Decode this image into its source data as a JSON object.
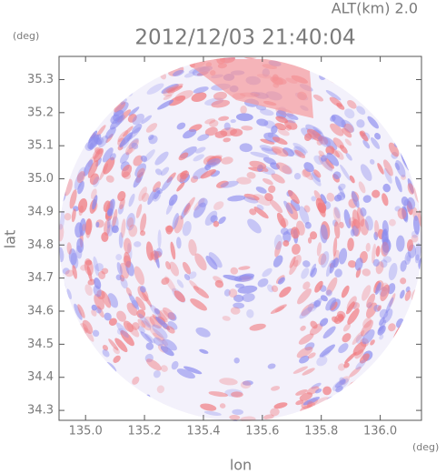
{
  "chart_data": {
    "type": "image",
    "title": "2012/12/03 21:40:04",
    "subtitle": "ALT(km) 2.0",
    "xlabel": "lon",
    "ylabel": "lat",
    "x_unit": "(deg)",
    "y_unit": "(deg)",
    "xlim": [
      134.91,
      136.14
    ],
    "ylim": [
      34.27,
      35.37
    ],
    "xticks": [
      {
        "value": 135.0,
        "label": "135.0"
      },
      135.2,
      135.4,
      135.6,
      135.8,
      {
        "value": 136.0,
        "label": "136.0"
      }
    ],
    "yticks": [
      34.3,
      34.4,
      34.5,
      34.6,
      34.7,
      34.8,
      34.9,
      {
        "value": 35.0,
        "label": "35.0"
      },
      35.1,
      35.2,
      35.3
    ]
  }
}
